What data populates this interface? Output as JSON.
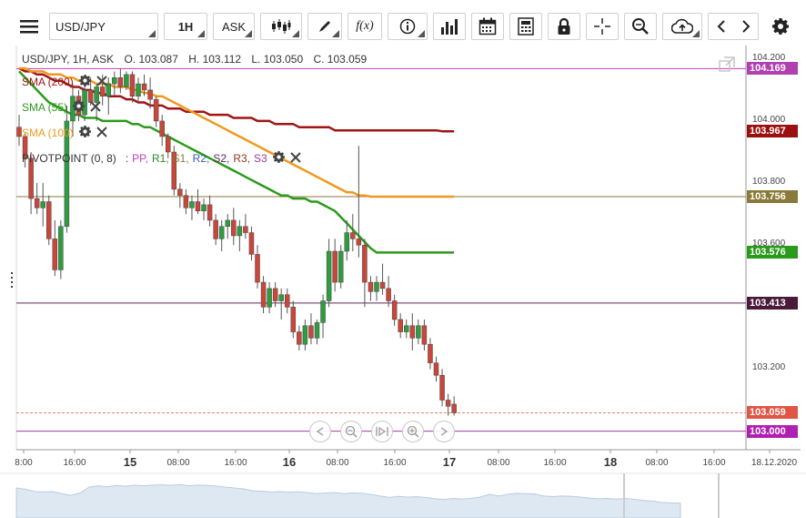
{
  "toolbar": {
    "symbol": "USD/JPY",
    "timeframe": "1H",
    "price_side": "ASK",
    "icons": [
      "menu-icon",
      "candlestick-type-icon",
      "draw-pencil-icon",
      "function-icon",
      "info-icon",
      "bars-volume-icon",
      "calendar-icon",
      "calculator-icon",
      "lock-icon",
      "crosshair-icon",
      "zoom-icon",
      "cloud-upload-icon",
      "prev-icon",
      "next-icon",
      "settings-icon"
    ],
    "function_label": "f(x)"
  },
  "header": {
    "instrument": "USD/JPY, 1H, ASK",
    "open": "O. 103.087",
    "high": "H. 103.112",
    "low": "L. 103.050",
    "close": "C. 103.059"
  },
  "legend": {
    "sma200": "SMA (200)",
    "sma55": "SMA (55)",
    "sma100": "SMA (100)",
    "pivot": "PIVOTPOINT (0, 8)",
    "pivot_sep": ":",
    "pivot_items": [
      "PP,",
      "R1,",
      "S1,",
      "R2,",
      "S2,",
      "R3,",
      "S3"
    ]
  },
  "colors": {
    "up": "#2e9c3f",
    "down": "#c8463a",
    "sma200": "#a01515",
    "sma55": "#2a9a1a",
    "sma100": "#f0981e",
    "pp": "#c040c0",
    "r1": "#2a8a2a",
    "s1": "#8a7a3a",
    "r2": "#3a5ab0",
    "s2": "#5a2a5a",
    "r3": "#8a3a20",
    "s3": "#a03aa0"
  },
  "price_tags": [
    {
      "label": "104.169",
      "value": 104.169,
      "color": "#b040b0"
    },
    {
      "label": "103.967",
      "value": 103.967,
      "color": "#9a1010"
    },
    {
      "label": "103.756",
      "value": 103.756,
      "color": "#8a7a3a"
    },
    {
      "label": "103.576",
      "value": 103.576,
      "color": "#2a9a1a"
    },
    {
      "label": "103.413",
      "value": 103.413,
      "color": "#4a1a3a"
    },
    {
      "label": "103.059",
      "value": 103.059,
      "color": "#e05545"
    },
    {
      "label": "103.000",
      "value": 103.0,
      "color": "#b020b0"
    }
  ],
  "chart_data": {
    "type": "candlestick",
    "title": "USD/JPY, 1H, ASK",
    "ylim": [
      102.94,
      104.22
    ],
    "y_ticks": [
      "104.200",
      "104.000",
      "103.800",
      "103.600",
      "103.200"
    ],
    "y_tick_values": [
      104.2,
      104.0,
      103.8,
      103.6,
      103.2
    ],
    "x_ticks": [
      "8:00",
      "16:00",
      "15",
      "08:00",
      "16:00",
      "16",
      "08:00",
      "16:00",
      "17",
      "08:00",
      "16:00",
      "18",
      "08:00",
      "16:00",
      "18.12.2020"
    ],
    "x_ticks_bold": [
      false,
      false,
      true,
      false,
      false,
      true,
      false,
      false,
      true,
      false,
      false,
      true,
      false,
      false,
      false
    ],
    "horizontal_levels": [
      104.169,
      103.756,
      103.413,
      103.0
    ],
    "candles": [
      {
        "o": 103.98,
        "h": 104.02,
        "l": 103.92,
        "c": 103.95
      },
      {
        "o": 103.95,
        "h": 103.96,
        "l": 103.85,
        "c": 103.88
      },
      {
        "o": 103.88,
        "h": 103.9,
        "l": 103.7,
        "c": 103.75
      },
      {
        "o": 103.75,
        "h": 103.8,
        "l": 103.7,
        "c": 103.72
      },
      {
        "o": 103.72,
        "h": 103.8,
        "l": 103.66,
        "c": 103.74
      },
      {
        "o": 103.74,
        "h": 103.76,
        "l": 103.6,
        "c": 103.62
      },
      {
        "o": 103.62,
        "h": 103.68,
        "l": 103.5,
        "c": 103.52
      },
      {
        "o": 103.52,
        "h": 103.68,
        "l": 103.49,
        "c": 103.66
      },
      {
        "o": 103.66,
        "h": 104.05,
        "l": 103.64,
        "c": 104.0
      },
      {
        "o": 104.0,
        "h": 104.12,
        "l": 103.95,
        "c": 104.08
      },
      {
        "o": 104.08,
        "h": 104.1,
        "l": 104.0,
        "c": 104.02
      },
      {
        "o": 104.02,
        "h": 104.12,
        "l": 104.0,
        "c": 104.1
      },
      {
        "o": 104.1,
        "h": 104.14,
        "l": 104.05,
        "c": 104.06
      },
      {
        "o": 104.06,
        "h": 104.12,
        "l": 104.0,
        "c": 104.11
      },
      {
        "o": 104.11,
        "h": 104.15,
        "l": 104.05,
        "c": 104.08
      },
      {
        "o": 104.08,
        "h": 104.14,
        "l": 104.02,
        "c": 104.12
      },
      {
        "o": 104.12,
        "h": 104.16,
        "l": 104.08,
        "c": 104.14
      },
      {
        "o": 104.14,
        "h": 104.17,
        "l": 104.09,
        "c": 104.11
      },
      {
        "o": 104.11,
        "h": 104.16,
        "l": 104.1,
        "c": 104.15
      },
      {
        "o": 104.15,
        "h": 104.16,
        "l": 104.06,
        "c": 104.08
      },
      {
        "o": 104.08,
        "h": 104.14,
        "l": 104.06,
        "c": 104.12
      },
      {
        "o": 104.12,
        "h": 104.15,
        "l": 104.08,
        "c": 104.1
      },
      {
        "o": 104.1,
        "h": 104.14,
        "l": 104.04,
        "c": 104.07
      },
      {
        "o": 104.07,
        "h": 104.08,
        "l": 103.98,
        "c": 104.0
      },
      {
        "o": 104.0,
        "h": 104.02,
        "l": 103.92,
        "c": 103.95
      },
      {
        "o": 103.95,
        "h": 103.96,
        "l": 103.88,
        "c": 103.9
      },
      {
        "o": 103.9,
        "h": 103.92,
        "l": 103.76,
        "c": 103.78
      },
      {
        "o": 103.78,
        "h": 103.8,
        "l": 103.72,
        "c": 103.76
      },
      {
        "o": 103.76,
        "h": 103.78,
        "l": 103.7,
        "c": 103.72
      },
      {
        "o": 103.72,
        "h": 103.76,
        "l": 103.68,
        "c": 103.74
      },
      {
        "o": 103.74,
        "h": 103.78,
        "l": 103.7,
        "c": 103.71
      },
      {
        "o": 103.71,
        "h": 103.75,
        "l": 103.68,
        "c": 103.73
      },
      {
        "o": 103.73,
        "h": 103.76,
        "l": 103.66,
        "c": 103.68
      },
      {
        "o": 103.68,
        "h": 103.7,
        "l": 103.6,
        "c": 103.62
      },
      {
        "o": 103.62,
        "h": 103.68,
        "l": 103.58,
        "c": 103.66
      },
      {
        "o": 103.66,
        "h": 103.7,
        "l": 103.62,
        "c": 103.68
      },
      {
        "o": 103.68,
        "h": 103.72,
        "l": 103.6,
        "c": 103.63
      },
      {
        "o": 103.63,
        "h": 103.68,
        "l": 103.58,
        "c": 103.66
      },
      {
        "o": 103.66,
        "h": 103.7,
        "l": 103.62,
        "c": 103.64
      },
      {
        "o": 103.64,
        "h": 103.66,
        "l": 103.55,
        "c": 103.57
      },
      {
        "o": 103.57,
        "h": 103.6,
        "l": 103.46,
        "c": 103.48
      },
      {
        "o": 103.48,
        "h": 103.5,
        "l": 103.38,
        "c": 103.4
      },
      {
        "o": 103.4,
        "h": 103.48,
        "l": 103.38,
        "c": 103.46
      },
      {
        "o": 103.46,
        "h": 103.48,
        "l": 103.4,
        "c": 103.42
      },
      {
        "o": 103.42,
        "h": 103.46,
        "l": 103.36,
        "c": 103.44
      },
      {
        "o": 103.44,
        "h": 103.46,
        "l": 103.38,
        "c": 103.4
      },
      {
        "o": 103.4,
        "h": 103.42,
        "l": 103.3,
        "c": 103.32
      },
      {
        "o": 103.32,
        "h": 103.34,
        "l": 103.26,
        "c": 103.28
      },
      {
        "o": 103.28,
        "h": 103.36,
        "l": 103.26,
        "c": 103.34
      },
      {
        "o": 103.34,
        "h": 103.38,
        "l": 103.28,
        "c": 103.3
      },
      {
        "o": 103.3,
        "h": 103.36,
        "l": 103.28,
        "c": 103.35
      },
      {
        "o": 103.35,
        "h": 103.44,
        "l": 103.3,
        "c": 103.42
      },
      {
        "o": 103.42,
        "h": 103.62,
        "l": 103.4,
        "c": 103.58
      },
      {
        "o": 103.58,
        "h": 103.62,
        "l": 103.45,
        "c": 103.48
      },
      {
        "o": 103.48,
        "h": 103.6,
        "l": 103.46,
        "c": 103.58
      },
      {
        "o": 103.58,
        "h": 103.68,
        "l": 103.55,
        "c": 103.64
      },
      {
        "o": 103.64,
        "h": 103.7,
        "l": 103.58,
        "c": 103.62
      },
      {
        "o": 103.62,
        "h": 103.92,
        "l": 103.56,
        "c": 103.6
      },
      {
        "o": 103.6,
        "h": 103.62,
        "l": 103.4,
        "c": 103.48
      },
      {
        "o": 103.48,
        "h": 103.5,
        "l": 103.42,
        "c": 103.45
      },
      {
        "o": 103.45,
        "h": 103.5,
        "l": 103.42,
        "c": 103.48
      },
      {
        "o": 103.48,
        "h": 103.54,
        "l": 103.44,
        "c": 103.46
      },
      {
        "o": 103.46,
        "h": 103.5,
        "l": 103.4,
        "c": 103.42
      },
      {
        "o": 103.42,
        "h": 103.44,
        "l": 103.34,
        "c": 103.36
      },
      {
        "o": 103.36,
        "h": 103.38,
        "l": 103.3,
        "c": 103.32
      },
      {
        "o": 103.32,
        "h": 103.36,
        "l": 103.3,
        "c": 103.34
      },
      {
        "o": 103.34,
        "h": 103.38,
        "l": 103.26,
        "c": 103.3
      },
      {
        "o": 103.3,
        "h": 103.36,
        "l": 103.28,
        "c": 103.34
      },
      {
        "o": 103.34,
        "h": 103.36,
        "l": 103.26,
        "c": 103.28
      },
      {
        "o": 103.28,
        "h": 103.3,
        "l": 103.2,
        "c": 103.22
      },
      {
        "o": 103.22,
        "h": 103.24,
        "l": 103.16,
        "c": 103.18
      },
      {
        "o": 103.18,
        "h": 103.2,
        "l": 103.08,
        "c": 103.1
      },
      {
        "o": 103.1,
        "h": 103.12,
        "l": 103.05,
        "c": 103.08
      },
      {
        "o": 103.087,
        "h": 103.112,
        "l": 103.05,
        "c": 103.059
      }
    ],
    "sma200": [
      104.17,
      104.16,
      104.16,
      104.15,
      104.15,
      104.14,
      104.13,
      104.13,
      104.12,
      104.11,
      104.11,
      104.1,
      104.1,
      104.09,
      104.09,
      104.08,
      104.08,
      104.08,
      104.07,
      104.07,
      104.06,
      104.06,
      104.05,
      104.05,
      104.05,
      104.04,
      104.04,
      104.04,
      104.03,
      104.03,
      104.03,
      104.03,
      104.02,
      104.02,
      104.02,
      104.02,
      104.01,
      104.01,
      104.01,
      104.01,
      104.0,
      104.0,
      104.0,
      103.99,
      103.99,
      103.99,
      103.99,
      103.98,
      103.98,
      103.98,
      103.98,
      103.98,
      103.98,
      103.97,
      103.97,
      103.97,
      103.97,
      103.97,
      103.97,
      103.97,
      103.97,
      103.97,
      103.97,
      103.97,
      103.97,
      103.97,
      103.97,
      103.97,
      103.97,
      103.97,
      103.97,
      103.967,
      103.967,
      103.967
    ],
    "sma100": [
      104.17,
      104.17,
      104.16,
      104.16,
      104.16,
      104.15,
      104.15,
      104.15,
      104.14,
      104.14,
      104.13,
      104.13,
      104.13,
      104.12,
      104.12,
      104.12,
      104.11,
      104.11,
      104.11,
      104.1,
      104.1,
      104.09,
      104.09,
      104.08,
      104.08,
      104.07,
      104.06,
      104.05,
      104.04,
      104.03,
      104.02,
      104.01,
      104.0,
      103.99,
      103.98,
      103.97,
      103.96,
      103.95,
      103.94,
      103.93,
      103.92,
      103.91,
      103.9,
      103.89,
      103.88,
      103.87,
      103.86,
      103.85,
      103.84,
      103.83,
      103.82,
      103.81,
      103.8,
      103.79,
      103.78,
      103.77,
      103.77,
      103.76,
      103.76,
      103.756,
      103.756,
      103.756,
      103.756,
      103.756,
      103.756,
      103.756,
      103.756,
      103.756,
      103.756,
      103.756,
      103.756,
      103.756,
      103.756,
      103.756
    ],
    "sma55": [
      104.16,
      104.14,
      104.12,
      104.1,
      104.08,
      104.06,
      104.05,
      104.04,
      104.03,
      104.02,
      104.02,
      104.01,
      104.01,
      104.01,
      104.0,
      104.0,
      104.0,
      104.0,
      104.0,
      103.99,
      103.99,
      103.98,
      103.98,
      103.97,
      103.96,
      103.95,
      103.94,
      103.93,
      103.92,
      103.91,
      103.9,
      103.89,
      103.88,
      103.87,
      103.86,
      103.85,
      103.84,
      103.83,
      103.82,
      103.81,
      103.8,
      103.79,
      103.78,
      103.77,
      103.76,
      103.76,
      103.75,
      103.75,
      103.75,
      103.74,
      103.74,
      103.73,
      103.72,
      103.71,
      103.69,
      103.67,
      103.65,
      103.63,
      103.61,
      103.59,
      103.576,
      103.576,
      103.576,
      103.576,
      103.576,
      103.576,
      103.576,
      103.576,
      103.576,
      103.576,
      103.576,
      103.576,
      103.576,
      103.576
    ]
  }
}
